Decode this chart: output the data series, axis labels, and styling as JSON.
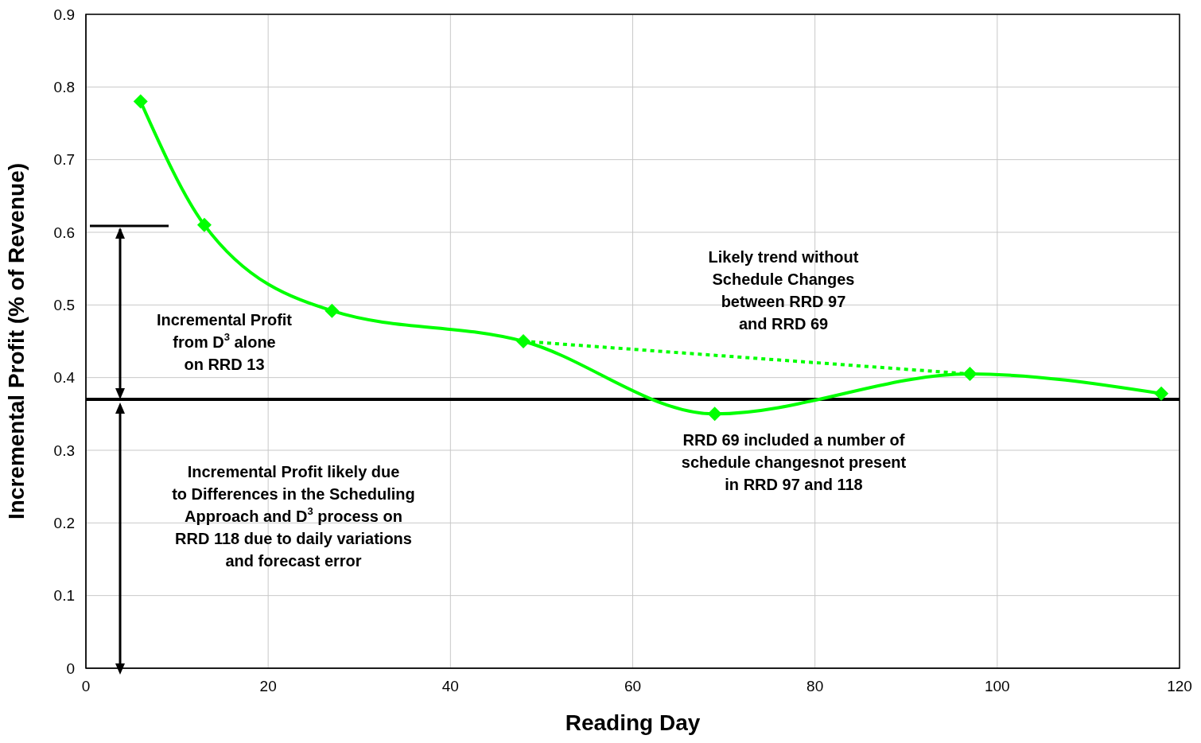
{
  "chart_data": {
    "type": "line",
    "xlabel": "Reading Day",
    "ylabel": "Incremental Profit (% of Revenue)",
    "xlim": [
      0,
      120
    ],
    "xticks": [
      0,
      20,
      40,
      60,
      80,
      100,
      120
    ],
    "ylim": [
      0,
      0.9
    ],
    "yticks": [
      0,
      0.1,
      0.2,
      0.3,
      0.4,
      0.5,
      0.6,
      0.7,
      0.8,
      0.9
    ],
    "grid": true,
    "series": [
      {
        "color": "#00ff00",
        "marker": "diamond",
        "line_style": "solid",
        "x": [
          6,
          13,
          27,
          48,
          69,
          97,
          118
        ],
        "values": [
          0.78,
          0.61,
          0.492,
          0.45,
          0.35,
          0.405,
          0.378
        ]
      },
      {
        "color": "#00ff00",
        "marker": "none",
        "line_style": "dotted",
        "x": [
          48,
          97
        ],
        "values": [
          0.45,
          0.405
        ]
      }
    ],
    "ref_lines": [
      {
        "axis": "y",
        "value": 0.37,
        "color": "#000000"
      }
    ],
    "annotations": [
      "Incremental Profit\nfrom D$^{3}$ alone\non RRD 13",
      "Likely trend without\nSchedule Changes\nbetween RRD 97\nand RRD 69",
      "RRD  69 included a number of\nschedule changesnot present\nin RRD 97 and 118",
      "Incremental Profit likely due\nto Differences in the Scheduling\nApproach and D$^{3}$ process on\nRRD 118 due to daily variations\nand forecast error"
    ]
  }
}
